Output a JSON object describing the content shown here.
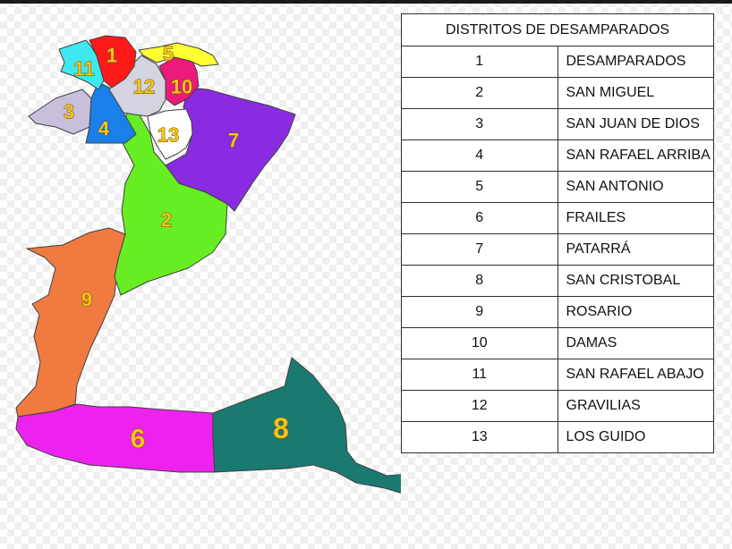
{
  "legend": {
    "title": "DISTRITOS DE DESAMPARADOS",
    "rows": [
      {
        "num": "1",
        "name": "DESAMPARADOS"
      },
      {
        "num": "2",
        "name": "SAN MIGUEL"
      },
      {
        "num": "3",
        "name": "SAN JUAN DE DIOS"
      },
      {
        "num": "4",
        "name": "SAN RAFAEL ARRIBA"
      },
      {
        "num": "5",
        "name": "SAN ANTONIO"
      },
      {
        "num": "6",
        "name": "FRAILES"
      },
      {
        "num": "7",
        "name": "PATARRÁ"
      },
      {
        "num": "8",
        "name": "SAN CRISTOBAL"
      },
      {
        "num": "9",
        "name": "ROSARIO"
      },
      {
        "num": "10",
        "name": "DAMAS"
      },
      {
        "num": "11",
        "name": "SAN RAFAEL ABAJO"
      },
      {
        "num": "12",
        "name": "GRAVILIAS"
      },
      {
        "num": "13",
        "name": "LOS GUIDO"
      }
    ]
  },
  "map": {
    "districts": [
      {
        "num": "1",
        "color": "#ff1a1a"
      },
      {
        "num": "2",
        "color": "#66ee22"
      },
      {
        "num": "3",
        "color": "#c8bfdc"
      },
      {
        "num": "4",
        "color": "#1a7fe8"
      },
      {
        "num": "5",
        "color": "#ffff33"
      },
      {
        "num": "6",
        "color": "#ee22ee"
      },
      {
        "num": "7",
        "color": "#8a2be2"
      },
      {
        "num": "8",
        "color": "#1a7a70"
      },
      {
        "num": "9",
        "color": "#f07a40"
      },
      {
        "num": "10",
        "color": "#ee1a7a"
      },
      {
        "num": "11",
        "color": "#3fe8f0"
      },
      {
        "num": "12",
        "color": "#d4d4e0"
      },
      {
        "num": "13",
        "color": "#ffffff"
      }
    ]
  }
}
